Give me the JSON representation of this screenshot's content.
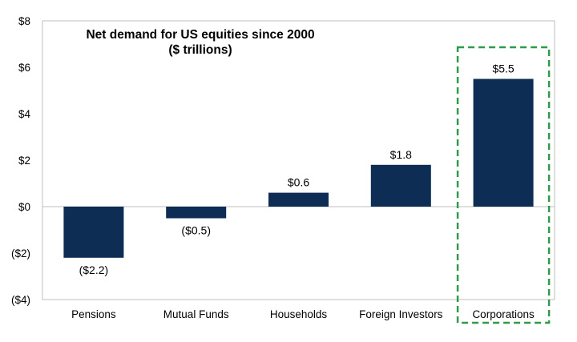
{
  "chart_data": {
    "type": "bar",
    "title": "Net demand for US equities since 2000",
    "subtitle": "($ trillions)",
    "xlabel": "",
    "ylabel": "",
    "categories": [
      "Pensions",
      "Mutual Funds",
      "Households",
      "Foreign Investors",
      "Corporations"
    ],
    "values": [
      -2.2,
      -0.5,
      0.6,
      1.8,
      5.5
    ],
    "value_labels": [
      "($2.2)",
      "($0.5)",
      "$0.6",
      "$1.8",
      "$5.5"
    ],
    "ylim": [
      -4,
      8
    ],
    "y_ticks": [
      8,
      6,
      4,
      2,
      0,
      -2,
      -4
    ],
    "y_tick_labels": [
      "$8",
      "$6",
      "$4",
      "$2",
      "$0",
      "($2)",
      "($4)"
    ],
    "highlighted_category": "Corporations",
    "bar_color": "#0d2d55",
    "highlight_color": "#2e9a4a",
    "grid": false
  }
}
